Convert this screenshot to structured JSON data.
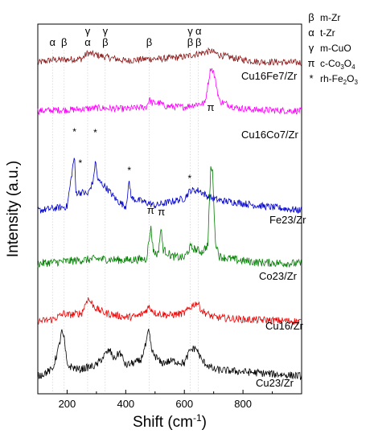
{
  "chart_data": {
    "type": "line",
    "xlabel": "Shift (cm",
    "xlabel_sup": "-1",
    "xlabel_end": ")",
    "ylabel": "Intensity (a.u.)",
    "xlim": [
      100,
      1000
    ],
    "xticks": [
      200,
      400,
      600,
      800
    ],
    "grid": false,
    "series": [
      {
        "name": "Cu16Fe7/Zr",
        "color": "#8b1a1a",
        "points": [
          [
            100,
            0
          ],
          [
            150,
            3
          ],
          [
            180,
            3
          ],
          [
            250,
            4
          ],
          [
            270,
            10
          ],
          [
            330,
            6
          ],
          [
            400,
            2
          ],
          [
            480,
            4
          ],
          [
            520,
            4
          ],
          [
            600,
            6
          ],
          [
            640,
            9
          ],
          [
            690,
            12
          ],
          [
            720,
            8
          ],
          [
            780,
            4
          ],
          [
            850,
            1
          ],
          [
            1000,
            0
          ]
        ]
      },
      {
        "name": "Cu16Co7/Zr",
        "color": "#ff00ff",
        "points": [
          [
            100,
            0
          ],
          [
            180,
            1
          ],
          [
            200,
            1
          ],
          [
            260,
            2
          ],
          [
            300,
            3
          ],
          [
            400,
            2
          ],
          [
            470,
            4
          ],
          [
            480,
            12
          ],
          [
            490,
            8
          ],
          [
            520,
            8
          ],
          [
            530,
            5
          ],
          [
            600,
            4
          ],
          [
            640,
            7
          ],
          [
            670,
            8
          ],
          [
            690,
            45
          ],
          [
            700,
            40
          ],
          [
            720,
            10
          ],
          [
            780,
            3
          ],
          [
            850,
            1
          ],
          [
            1000,
            0
          ]
        ]
      },
      {
        "name": "Fe23/Zr",
        "color": "#0000cc",
        "points": [
          [
            100,
            0
          ],
          [
            200,
            4
          ],
          [
            225,
            55
          ],
          [
            230,
            18
          ],
          [
            245,
            18
          ],
          [
            255,
            18
          ],
          [
            270,
            16
          ],
          [
            290,
            30
          ],
          [
            296,
            50
          ],
          [
            305,
            30
          ],
          [
            330,
            24
          ],
          [
            370,
            10
          ],
          [
            400,
            4
          ],
          [
            412,
            28
          ],
          [
            420,
            12
          ],
          [
            470,
            8
          ],
          [
            500,
            5
          ],
          [
            600,
            12
          ],
          [
            620,
            20
          ],
          [
            650,
            20
          ],
          [
            680,
            14
          ],
          [
            700,
            12
          ],
          [
            720,
            10
          ],
          [
            780,
            8
          ],
          [
            850,
            5
          ],
          [
            1000,
            0
          ]
        ]
      },
      {
        "name": "Co23/Zr",
        "color": "#007f00",
        "points": [
          [
            100,
            0
          ],
          [
            200,
            2
          ],
          [
            300,
            4
          ],
          [
            400,
            3
          ],
          [
            470,
            4
          ],
          [
            480,
            20
          ],
          [
            485,
            32
          ],
          [
            495,
            10
          ],
          [
            510,
            8
          ],
          [
            520,
            30
          ],
          [
            528,
            12
          ],
          [
            560,
            6
          ],
          [
            600,
            5
          ],
          [
            620,
            14
          ],
          [
            640,
            12
          ],
          [
            660,
            10
          ],
          [
            680,
            16
          ],
          [
            690,
            82
          ],
          [
            697,
            78
          ],
          [
            705,
            20
          ],
          [
            720,
            6
          ],
          [
            780,
            3
          ],
          [
            850,
            1
          ],
          [
            1000,
            0
          ]
        ]
      },
      {
        "name": "Cu16/Zr",
        "color": "#ee0000",
        "points": [
          [
            100,
            0
          ],
          [
            150,
            2
          ],
          [
            180,
            6
          ],
          [
            190,
            8
          ],
          [
            200,
            6
          ],
          [
            250,
            8
          ],
          [
            270,
            22
          ],
          [
            300,
            12
          ],
          [
            330,
            8
          ],
          [
            400,
            4
          ],
          [
            440,
            5
          ],
          [
            460,
            8
          ],
          [
            480,
            14
          ],
          [
            500,
            8
          ],
          [
            550,
            6
          ],
          [
            600,
            8
          ],
          [
            630,
            16
          ],
          [
            645,
            18
          ],
          [
            660,
            10
          ],
          [
            700,
            4
          ],
          [
            800,
            2
          ],
          [
            1000,
            0
          ]
        ]
      },
      {
        "name": "Cu23/Zr",
        "color": "#000000",
        "points": [
          [
            100,
            0
          ],
          [
            150,
            6
          ],
          [
            175,
            30
          ],
          [
            180,
            42
          ],
          [
            190,
            34
          ],
          [
            200,
            10
          ],
          [
            240,
            6
          ],
          [
            300,
            10
          ],
          [
            330,
            20
          ],
          [
            345,
            24
          ],
          [
            360,
            16
          ],
          [
            380,
            22
          ],
          [
            400,
            10
          ],
          [
            450,
            14
          ],
          [
            470,
            30
          ],
          [
            478,
            42
          ],
          [
            490,
            22
          ],
          [
            520,
            12
          ],
          [
            560,
            14
          ],
          [
            600,
            12
          ],
          [
            620,
            24
          ],
          [
            640,
            26
          ],
          [
            660,
            14
          ],
          [
            700,
            6
          ],
          [
            800,
            4
          ],
          [
            1000,
            0
          ]
        ]
      }
    ],
    "top_markers": [
      {
        "label": "α",
        "x": 150
      },
      {
        "label": "β",
        "x": 190
      },
      {
        "label": "γ",
        "x": 270,
        "label2": "α"
      },
      {
        "label": "γ",
        "x": 330,
        "label2": "β"
      },
      {
        "label": "β",
        "x": 480
      },
      {
        "label": "γ",
        "x": 620,
        "label2": "β"
      },
      {
        "label": "α",
        "x": 648,
        "label2": "β"
      }
    ],
    "peak_annotations": [
      {
        "label": "*",
        "x": 225,
        "series": "Fe23/Zr"
      },
      {
        "label": "*",
        "x": 245,
        "series": "Fe23/Zr"
      },
      {
        "label": "*",
        "x": 296,
        "series": "Fe23/Zr"
      },
      {
        "label": "*",
        "x": 412,
        "series": "Fe23/Zr"
      },
      {
        "label": "*",
        "x": 618,
        "series": "Fe23/Zr"
      },
      {
        "label": "π",
        "x": 485,
        "series": "Co23/Zr"
      },
      {
        "label": "π",
        "x": 522,
        "series": "Co23/Zr"
      },
      {
        "label": "π",
        "x": 690,
        "series": "Co23/Zr"
      }
    ],
    "legend": [
      {
        "symbol": "β",
        "text": "m-Zr"
      },
      {
        "symbol": "α",
        "text": "t-Zr"
      },
      {
        "symbol": "γ",
        "text": "m-CuO"
      },
      {
        "symbol": "π",
        "text": "c-Co",
        "sub1": "3",
        "mid": "O",
        "sub2": "4"
      },
      {
        "symbol": "*",
        "text": "rh-Fe",
        "sub1": "2",
        "mid": "O",
        "sub2": "3"
      }
    ],
    "legend_position": "top-right"
  }
}
